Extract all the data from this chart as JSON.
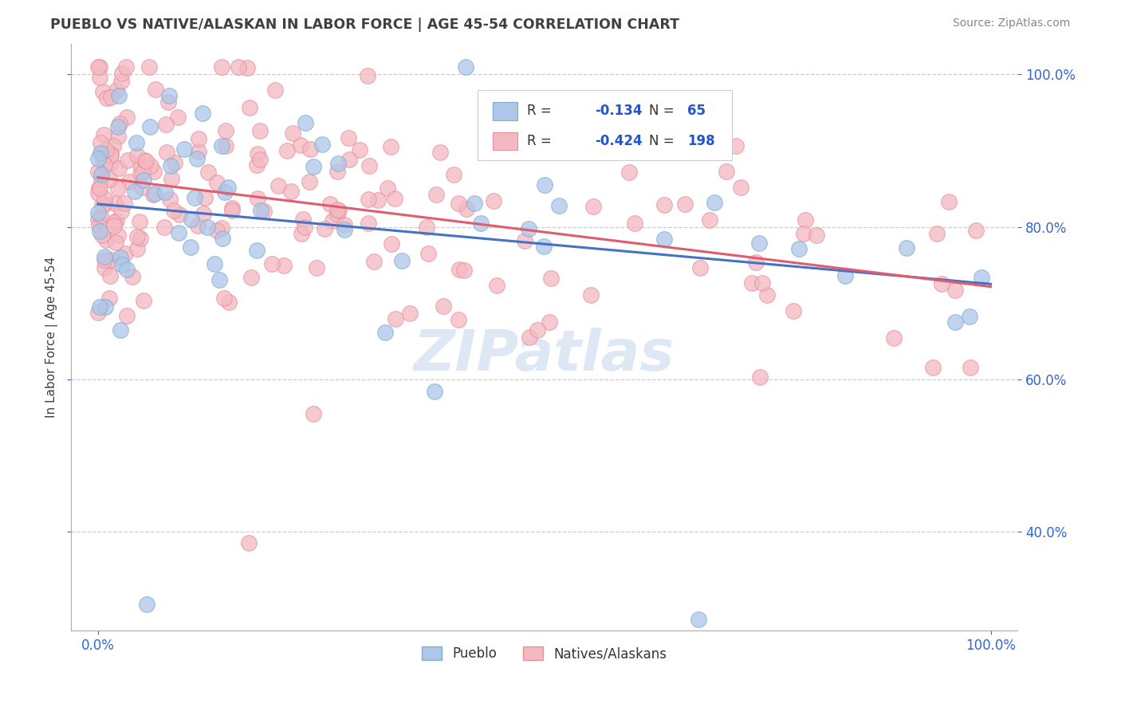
{
  "title": "PUEBLO VS NATIVE/ALASKAN IN LABOR FORCE | AGE 45-54 CORRELATION CHART",
  "source_text": "Source: ZipAtlas.com",
  "ylabel": "In Labor Force | Age 45-54",
  "pueblo_color": "#aec6e8",
  "pueblo_edge": "#7bafd4",
  "native_color": "#f4b8c1",
  "native_edge": "#e8909a",
  "trendline_blue": "#4472c4",
  "trendline_pink": "#e05c6e",
  "background_color": "#ffffff",
  "grid_color": "#c8c8c8",
  "title_color": "#404040",
  "legend_label_color": "#2255cc",
  "watermark_color": "#c8d8ee",
  "watermark_text": "ZIPatlas",
  "R_pueblo": -0.134,
  "N_pueblo": 65,
  "R_native": -0.424,
  "N_native": 198,
  "xlim": [
    -0.03,
    1.03
  ],
  "ylim": [
    0.27,
    1.04
  ],
  "yticks": [
    0.4,
    0.6,
    0.8,
    1.0
  ],
  "xticks": [
    0.0,
    1.0
  ]
}
